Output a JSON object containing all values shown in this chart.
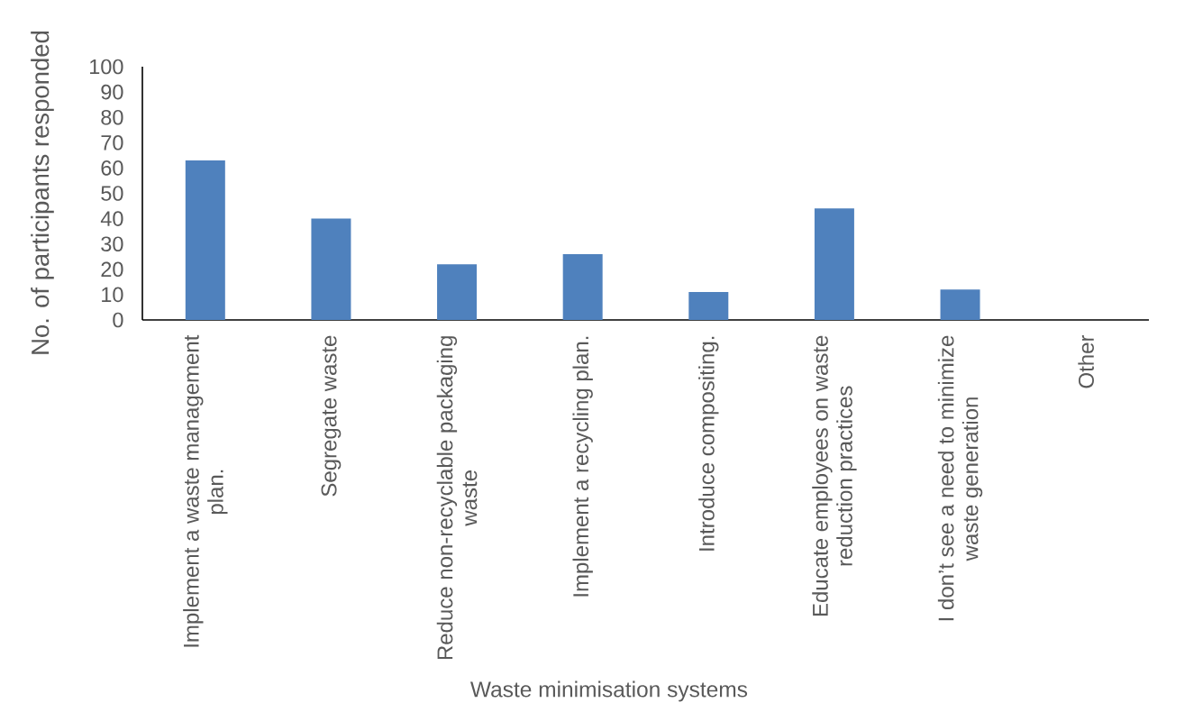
{
  "chart_data": {
    "type": "bar",
    "xlabel": "Waste minimisation systems",
    "ylabel": "No. of participants responded",
    "categories": [
      "Implement a waste management plan.",
      "Segregate waste",
      "Reduce non-recyclable packaging waste",
      "Implement a recycling plan.",
      "Introduce compositing.",
      "Educate employees on waste reduction practices",
      "I don’t see a need to minimize waste generation",
      "Other"
    ],
    "values": [
      63,
      40,
      22,
      26,
      11,
      44,
      12,
      0
    ],
    "color": "#4f81bd",
    "ylim": [
      0,
      100
    ],
    "yticks": [
      0,
      10,
      20,
      30,
      40,
      50,
      60,
      70,
      80,
      90,
      100
    ]
  }
}
